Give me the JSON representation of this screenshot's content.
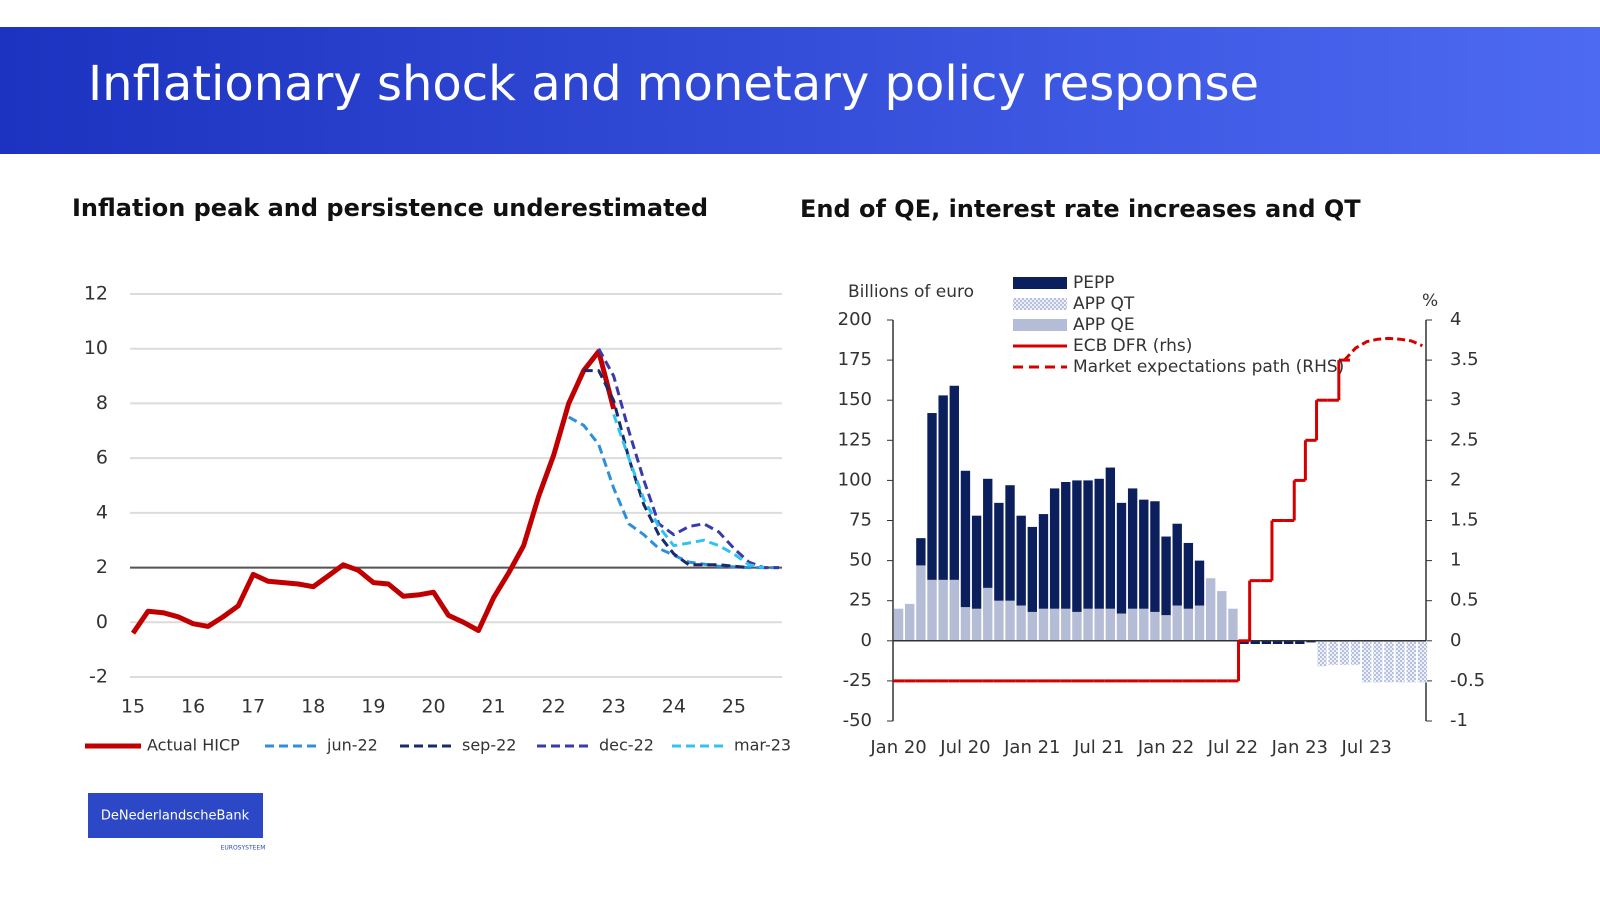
{
  "slide": {
    "title": "Inflationary shock and monetary policy response",
    "logo": "DeNederlandscheBank",
    "logo_sub": "EUROSYSTEEM"
  },
  "chart_data": [
    {
      "type": "line",
      "title": "Inflation peak and persistence underestimated",
      "xlim": [
        14.95,
        25.8
      ],
      "xticks": [
        15,
        16,
        17,
        18,
        19,
        20,
        21,
        22,
        23,
        24,
        25
      ],
      "ylim": [
        -2,
        12
      ],
      "yticks": [
        -2,
        0,
        2,
        4,
        6,
        8,
        10,
        12
      ],
      "grid": true,
      "hline": 2,
      "series": [
        {
          "name": "Actual HICP",
          "color": "#c00000",
          "dash": false,
          "x": [
            15,
            15.25,
            15.5,
            15.75,
            16,
            16.25,
            16.5,
            16.75,
            17,
            17.25,
            17.5,
            17.75,
            18,
            18.25,
            18.5,
            18.75,
            19,
            19.25,
            19.5,
            19.75,
            20,
            20.25,
            20.5,
            20.75,
            21,
            21.25,
            21.5,
            21.75,
            22,
            22.25,
            22.5,
            22.75,
            23
          ],
          "values": [
            -0.4,
            0.4,
            0.35,
            0.2,
            -0.05,
            -0.15,
            0.2,
            0.6,
            1.75,
            1.5,
            1.45,
            1.4,
            1.3,
            1.7,
            2.1,
            1.9,
            1.45,
            1.4,
            0.95,
            1.0,
            1.1,
            0.25,
            0.0,
            -0.3,
            0.9,
            1.8,
            2.8,
            4.6,
            6.1,
            8.0,
            9.2,
            9.9,
            7.8
          ]
        },
        {
          "name": "jun-22",
          "color": "#2f8fd8",
          "dash": true,
          "x": [
            22.25,
            22.5,
            22.75,
            23,
            23.25,
            23.5,
            23.75,
            24.25,
            24.75,
            25.25,
            25.75
          ],
          "values": [
            7.5,
            7.2,
            6.5,
            4.9,
            3.6,
            3.2,
            2.7,
            2.2,
            2.05,
            2.0,
            2.0
          ]
        },
        {
          "name": "sep-22",
          "color": "#1b2a6b",
          "dash": true,
          "x": [
            22.5,
            22.75,
            23,
            23.25,
            23.5,
            23.75,
            24,
            24.25,
            24.75,
            25.25
          ],
          "values": [
            9.2,
            9.2,
            8.1,
            6.0,
            4.3,
            3.2,
            2.5,
            2.1,
            2.1,
            2.0
          ]
        },
        {
          "name": "dec-22",
          "color": "#3a3aa8",
          "dash": true,
          "x": [
            22.75,
            23,
            23.25,
            23.5,
            23.75,
            24,
            24.25,
            24.5,
            24.75,
            25,
            25.25,
            25.5,
            25.75
          ],
          "values": [
            10.0,
            9.0,
            7.0,
            5.2,
            3.6,
            3.2,
            3.5,
            3.6,
            3.3,
            2.7,
            2.2,
            2.0,
            2.0
          ]
        },
        {
          "name": "mar-23",
          "color": "#2fc4ee",
          "dash": true,
          "x": [
            23,
            23.25,
            23.5,
            23.75,
            24,
            24.25,
            24.5,
            24.75,
            25,
            25.25,
            25.5
          ],
          "values": [
            7.6,
            6.0,
            4.5,
            3.5,
            2.8,
            2.9,
            3.0,
            2.8,
            2.5,
            2.1,
            2.0
          ]
        }
      ]
    },
    {
      "type": "bar",
      "title": "End of QE, interest rate increases and QT",
      "y_label": "Billions of euro",
      "y2_label": "%",
      "categories": [
        "Jan 20",
        null,
        null,
        null,
        null,
        null,
        "Jul 20",
        null,
        null,
        null,
        null,
        null,
        "Jan 21",
        null,
        null,
        null,
        null,
        null,
        "Jul 21",
        null,
        null,
        null,
        null,
        null,
        "Jan 22",
        null,
        null,
        null,
        null,
        null,
        "Jul 22",
        null,
        null,
        null,
        null,
        null,
        "Jan 23",
        null,
        null,
        null,
        null,
        null,
        "Jul 23",
        null,
        null,
        null,
        null,
        null
      ],
      "ylim": [
        -50,
        200
      ],
      "yticks": [
        -50,
        -25,
        0,
        25,
        50,
        75,
        100,
        125,
        150,
        175,
        200
      ],
      "y2lim": [
        -1,
        4
      ],
      "y2ticks": [
        -1,
        -0.5,
        0,
        0.5,
        1,
        1.5,
        2,
        2.5,
        3,
        3.5,
        4
      ],
      "series": [
        {
          "name": "PEPP",
          "color": "#0b1f5c",
          "values": [
            null,
            null,
            17,
            104,
            115,
            121,
            85,
            58,
            68,
            61,
            72,
            56,
            53,
            59,
            75,
            79,
            82,
            80,
            81,
            88,
            69,
            75,
            68,
            69,
            49,
            51,
            41,
            28,
            null,
            null,
            null,
            -2,
            -2,
            -2,
            -2,
            -2,
            -2,
            -1,
            null,
            null,
            null,
            null,
            null,
            null,
            null,
            null,
            null,
            null
          ]
        },
        {
          "name": "APP QT",
          "color": "#c8d0e8",
          "hatch": true,
          "values": [
            null,
            null,
            null,
            null,
            null,
            null,
            null,
            null,
            null,
            null,
            null,
            null,
            null,
            null,
            null,
            null,
            null,
            null,
            null,
            null,
            null,
            null,
            null,
            null,
            null,
            null,
            null,
            null,
            null,
            null,
            null,
            null,
            null,
            null,
            null,
            null,
            null,
            null,
            -16,
            -15,
            -15,
            -15,
            -26,
            -26,
            -26,
            -26,
            -26,
            -26
          ]
        },
        {
          "name": "APP QE",
          "color": "#b4bcd6",
          "values": [
            20,
            23,
            47,
            38,
            38,
            38,
            21,
            20,
            33,
            25,
            25,
            22,
            18,
            20,
            20,
            20,
            18,
            20,
            20,
            20,
            17,
            20,
            20,
            18,
            16,
            22,
            20,
            22,
            39,
            31,
            20,
            null,
            null,
            null,
            null,
            null,
            null,
            null,
            null,
            null,
            null,
            null,
            null,
            null,
            null,
            null,
            null,
            null
          ]
        },
        {
          "name": "ECB DFR (rhs)",
          "color": "#d40000",
          "axis": "y2",
          "step": true,
          "values": [
            -0.5,
            -0.5,
            -0.5,
            -0.5,
            -0.5,
            -0.5,
            -0.5,
            -0.5,
            -0.5,
            -0.5,
            -0.5,
            -0.5,
            -0.5,
            -0.5,
            -0.5,
            -0.5,
            -0.5,
            -0.5,
            -0.5,
            -0.5,
            -0.5,
            -0.5,
            -0.5,
            -0.5,
            -0.5,
            -0.5,
            -0.5,
            -0.5,
            -0.5,
            -0.5,
            -0.5,
            0,
            0.75,
            0.75,
            1.5,
            1.5,
            2.0,
            2.5,
            3.0,
            3.0,
            3.5,
            null,
            null,
            null,
            null,
            null,
            null,
            null
          ]
        },
        {
          "name": "Market expectations path (RHS)",
          "color": "#d40000",
          "axis": "y2",
          "dash": true,
          "values": [
            null,
            null,
            null,
            null,
            null,
            null,
            null,
            null,
            null,
            null,
            null,
            null,
            null,
            null,
            null,
            null,
            null,
            null,
            null,
            null,
            null,
            null,
            null,
            null,
            null,
            null,
            null,
            null,
            null,
            null,
            null,
            null,
            null,
            null,
            null,
            null,
            null,
            null,
            null,
            null,
            3.5,
            3.65,
            3.73,
            3.76,
            3.77,
            3.76,
            3.74,
            3.68
          ]
        }
      ]
    }
  ]
}
